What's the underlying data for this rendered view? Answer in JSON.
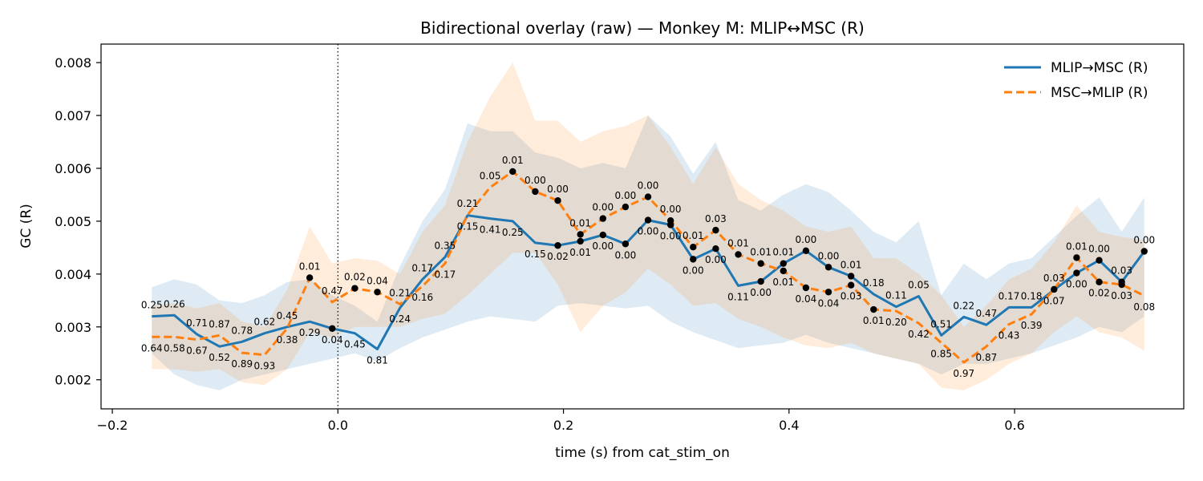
{
  "chart_data": {
    "type": "line",
    "title": "Bidirectional overlay (raw) — Monkey M: MLIP↔MSC (R)",
    "xlabel": "time (s) from cat_stim_on",
    "ylabel": "GC (R)",
    "xlim": [
      -0.21,
      0.75
    ],
    "ylim": [
      0.00145,
      0.00835
    ],
    "xticks": [
      -0.2,
      0.0,
      0.2,
      0.4,
      0.6
    ],
    "xtick_labels": [
      "−0.2",
      "0.0",
      "0.2",
      "0.4",
      "0.6"
    ],
    "yticks": [
      0.002,
      0.003,
      0.004,
      0.005,
      0.006,
      0.007,
      0.008
    ],
    "ytick_labels": [
      "0.002",
      "0.003",
      "0.004",
      "0.005",
      "0.006",
      "0.007",
      "0.008"
    ],
    "grid": false,
    "legend_position": "top-right",
    "vline_x": 0.0,
    "x": [
      -0.165,
      -0.145,
      -0.125,
      -0.105,
      -0.085,
      -0.065,
      -0.045,
      -0.025,
      -0.005,
      0.015,
      0.035,
      0.055,
      0.075,
      0.095,
      0.115,
      0.135,
      0.155,
      0.175,
      0.195,
      0.215,
      0.235,
      0.255,
      0.275,
      0.295,
      0.315,
      0.335,
      0.355,
      0.375,
      0.395,
      0.415,
      0.435,
      0.455,
      0.475,
      0.495,
      0.515,
      0.535,
      0.555,
      0.575,
      0.595,
      0.615,
      0.635,
      0.655,
      0.675,
      0.695,
      0.715
    ],
    "series": [
      {
        "name": "MLIP→MSC (R)",
        "color": "#1f77b4",
        "dash": "solid",
        "values": [
          0.0032,
          0.00322,
          0.00286,
          0.00263,
          0.00272,
          0.00288,
          0.003,
          0.0031,
          0.00297,
          0.00288,
          0.00258,
          0.00336,
          0.0039,
          0.00432,
          0.00511,
          0.00505,
          0.005,
          0.00459,
          0.00454,
          0.00462,
          0.00474,
          0.00457,
          0.00502,
          0.00493,
          0.00428,
          0.00448,
          0.00378,
          0.00386,
          0.0042,
          0.00444,
          0.00413,
          0.00396,
          0.00362,
          0.00338,
          0.00358,
          0.00284,
          0.00319,
          0.00304,
          0.00337,
          0.00337,
          0.0037,
          0.00402,
          0.00426,
          0.00385,
          0.00443
        ],
        "lower": [
          0.0025,
          0.0021,
          0.0019,
          0.0018,
          0.002,
          0.0021,
          0.0022,
          0.0023,
          0.0024,
          0.0025,
          0.00235,
          0.0026,
          0.0028,
          0.00295,
          0.0031,
          0.0032,
          0.00315,
          0.0031,
          0.0034,
          0.00345,
          0.0034,
          0.00335,
          0.0034,
          0.0031,
          0.0029,
          0.00275,
          0.0026,
          0.00265,
          0.0027,
          0.00285,
          0.0027,
          0.0026,
          0.0025,
          0.0024,
          0.0023,
          0.0021,
          0.0023,
          0.0023,
          0.0024,
          0.0025,
          0.00265,
          0.0028,
          0.003,
          0.0029,
          0.0032
        ],
        "upper": [
          0.00375,
          0.0039,
          0.0038,
          0.0035,
          0.00345,
          0.0036,
          0.00385,
          0.0039,
          0.0036,
          0.0034,
          0.0031,
          0.00415,
          0.005,
          0.0056,
          0.00685,
          0.0067,
          0.0067,
          0.0063,
          0.0062,
          0.006,
          0.0061,
          0.006,
          0.007,
          0.0066,
          0.0059,
          0.0065,
          0.0054,
          0.0052,
          0.0055,
          0.0057,
          0.00555,
          0.0052,
          0.0048,
          0.0046,
          0.005,
          0.0036,
          0.0042,
          0.0039,
          0.0042,
          0.0043,
          0.0047,
          0.0051,
          0.00545,
          0.0048,
          0.00545
        ]
      },
      {
        "name": "MSC→MLIP (R)",
        "color": "#ff7f0e",
        "dash": "dashed",
        "values": [
          0.00281,
          0.00281,
          0.00276,
          0.00284,
          0.00251,
          0.00247,
          0.00297,
          0.00393,
          0.00347,
          0.00373,
          0.00366,
          0.00343,
          0.00377,
          0.0042,
          0.00512,
          0.00564,
          0.00594,
          0.00556,
          0.00539,
          0.00475,
          0.00505,
          0.00527,
          0.00546,
          0.00501,
          0.00451,
          0.00483,
          0.00437,
          0.0042,
          0.00406,
          0.00374,
          0.00366,
          0.00379,
          0.00333,
          0.0033,
          0.00307,
          0.0027,
          0.00233,
          0.00263,
          0.00305,
          0.00324,
          0.00371,
          0.00431,
          0.00385,
          0.0038,
          0.00359
        ],
        "lower": [
          0.0022,
          0.0022,
          0.00215,
          0.0022,
          0.00195,
          0.0019,
          0.0022,
          0.0029,
          0.0028,
          0.003,
          0.003,
          0.003,
          0.00315,
          0.00325,
          0.0036,
          0.004,
          0.0044,
          0.0044,
          0.0038,
          0.0029,
          0.0034,
          0.00365,
          0.0041,
          0.0038,
          0.0034,
          0.00345,
          0.00315,
          0.003,
          0.0028,
          0.00265,
          0.0026,
          0.0027,
          0.0025,
          0.0024,
          0.0023,
          0.00185,
          0.0018,
          0.002,
          0.0023,
          0.0025,
          0.0029,
          0.0032,
          0.0029,
          0.0028,
          0.00255
        ],
        "upper": [
          0.0034,
          0.00345,
          0.00335,
          0.00345,
          0.0031,
          0.003,
          0.0037,
          0.0049,
          0.0042,
          0.0043,
          0.00425,
          0.004,
          0.0048,
          0.0053,
          0.0065,
          0.00735,
          0.008,
          0.0069,
          0.0069,
          0.0065,
          0.0067,
          0.0068,
          0.007,
          0.0064,
          0.0057,
          0.0064,
          0.0057,
          0.0054,
          0.0052,
          0.0049,
          0.0048,
          0.0049,
          0.0043,
          0.0043,
          0.004,
          0.0036,
          0.003,
          0.0034,
          0.0039,
          0.0041,
          0.0046,
          0.0053,
          0.0048,
          0.0047,
          0.00465
        ]
      }
    ],
    "annotations": {
      "mlip_to_msc": [
        "0.25",
        "0.26",
        "0.71",
        "0.52",
        "0.78",
        "0.62",
        "0.45",
        "0.29",
        "0.04",
        "0.45",
        "0.81",
        "0.24",
        "0.17",
        "0.35",
        "0.15",
        "0.41",
        "0.25",
        "0.15",
        "0.02",
        "0.01",
        "0.00",
        "0.00",
        "0.00",
        "0.00",
        "0.00",
        "0.00",
        "0.11",
        "0.00",
        "0.01",
        "0.00",
        "0.00",
        "0.01",
        "0.18",
        "0.11",
        "0.05",
        "0.51",
        "0.22",
        "0.47",
        "0.17",
        "0.18",
        "0.07",
        "0.00",
        "0.00",
        "0.03",
        "0.00"
      ],
      "msc_to_mlip": [
        "0.64",
        "0.58",
        "0.67",
        "0.87",
        "0.89",
        "0.93",
        "0.38",
        "0.01",
        "0.47",
        "0.02",
        "0.04",
        "0.21",
        "0.16",
        "0.17",
        "0.21",
        "0.05",
        "0.01",
        "0.00",
        "0.00",
        "0.01",
        "0.00",
        "0.00",
        "0.00",
        "0.00",
        "0.01",
        "0.03",
        "0.01",
        "0.01",
        "0.01",
        "0.04",
        "0.04",
        "0.03",
        "0.01",
        "0.20",
        "0.42",
        "0.85",
        "0.97",
        "0.87",
        "0.43",
        "0.39",
        "0.03",
        "0.01",
        "0.02",
        "0.03",
        "0.08"
      ],
      "significant_threshold": 0.05
    }
  }
}
